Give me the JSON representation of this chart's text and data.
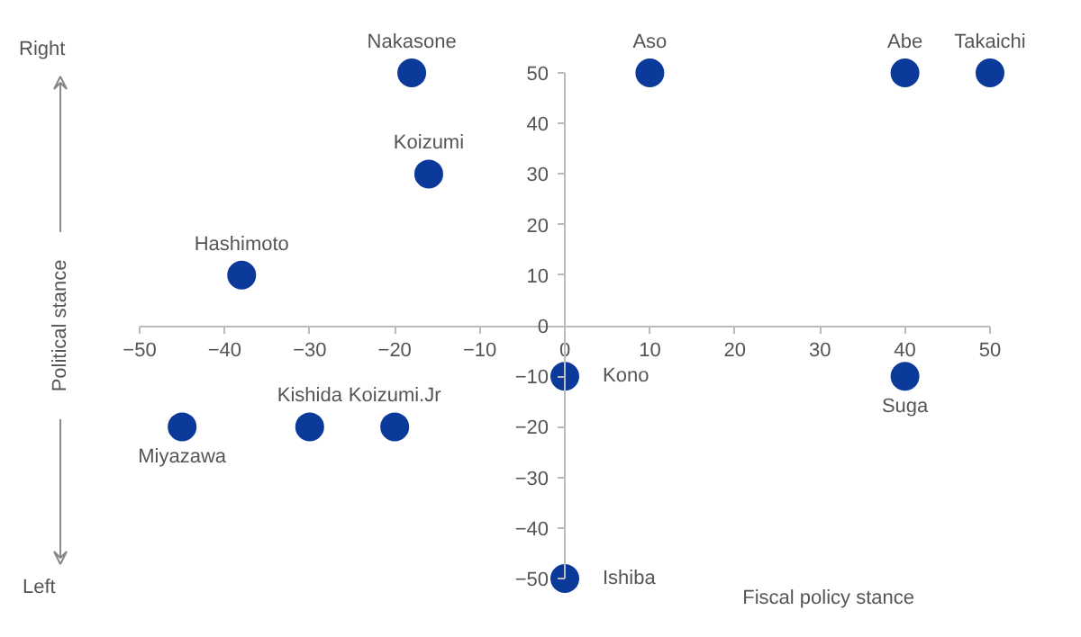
{
  "chart_data": {
    "type": "scatter",
    "xlabel": "Fiscal policy stance",
    "ylabel": "Political stance",
    "x": [
      -18,
      10,
      40,
      50,
      -16,
      -38,
      0,
      40,
      -45,
      -30,
      -20,
      0
    ],
    "series": [
      {
        "color": "#0b3a9a",
        "values": [
          50,
          50,
          50,
          50,
          30,
          10,
          -10,
          -10,
          -20,
          -20,
          -20,
          -50
        ]
      }
    ],
    "marker": "circle",
    "grid": false,
    "xlim": [
      -50,
      50
    ],
    "ylim": [
      -50,
      50
    ],
    "xticks": [
      -50,
      -40,
      -30,
      -20,
      -10,
      0,
      10,
      20,
      30,
      40,
      50
    ],
    "yticks": [
      -50,
      -40,
      -30,
      -20,
      -10,
      0,
      10,
      20,
      30,
      40,
      50
    ],
    "annotations": [
      "Right",
      "Left",
      {
        "text": "Nakasone",
        "x": -18,
        "y": 50
      },
      {
        "text": "Aso",
        "x": 10,
        "y": 50
      },
      {
        "text": "Abe",
        "x": 40,
        "y": 50
      },
      {
        "text": "Takaichi",
        "x": 50,
        "y": 50
      },
      {
        "text": "Koizumi",
        "x": -16,
        "y": 30
      },
      {
        "text": "Hashimoto",
        "x": -38,
        "y": 10
      },
      {
        "text": "Kono",
        "x": 0,
        "y": -10
      },
      {
        "text": "Suga",
        "x": 40,
        "y": -10
      },
      {
        "text": "Miyazawa",
        "x": -45,
        "y": -20
      },
      {
        "text": "Kishida",
        "x": -30,
        "y": -20
      },
      {
        "text": "Koizumi.Jr",
        "x": -20,
        "y": -20
      },
      {
        "text": "Ishiba",
        "x": 0,
        "y": -50
      }
    ]
  }
}
